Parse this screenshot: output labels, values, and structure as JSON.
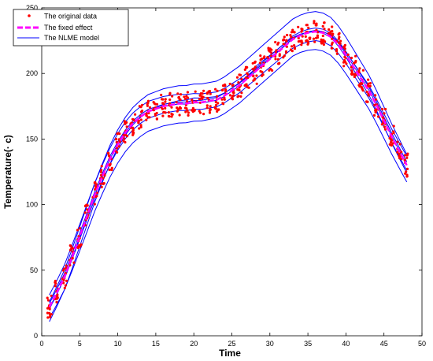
{
  "chart_data": {
    "type": "line",
    "xlabel": "Time",
    "ylabel": "Temperature(· c)",
    "xlim": [
      0,
      50
    ],
    "ylim": [
      0,
      250
    ],
    "xticks": [
      0,
      5,
      10,
      15,
      20,
      25,
      30,
      35,
      40,
      45,
      50
    ],
    "yticks": [
      0,
      50,
      100,
      150,
      200,
      250
    ],
    "grid": false,
    "legend_position": "top-left",
    "colors": {
      "original": "#ff0000",
      "fixed": "#ff00ff",
      "nlme": "#0000ff",
      "axis": "#000000"
    },
    "fixed_effect": {
      "name": "The fixed effect",
      "x": [
        1,
        2,
        3,
        4,
        5,
        6,
        7,
        8,
        9,
        10,
        11,
        12,
        13,
        14,
        15,
        16,
        17,
        18,
        19,
        20,
        21,
        22,
        23,
        24,
        25,
        26,
        27,
        28,
        29,
        30,
        31,
        32,
        33,
        34,
        35,
        36,
        37,
        38,
        39,
        40,
        41,
        42,
        43,
        44,
        45,
        46,
        47,
        48
      ],
      "y": [
        22,
        33,
        45,
        60,
        76,
        92,
        108,
        122,
        135,
        146,
        155,
        162,
        167,
        171,
        173,
        175,
        176,
        177,
        177,
        178,
        178,
        179,
        180,
        183,
        187,
        191,
        196,
        201,
        206,
        211,
        216,
        221,
        226,
        229,
        231,
        232,
        231,
        228,
        222,
        214,
        205,
        196,
        187,
        176,
        164,
        152,
        141,
        130
      ]
    },
    "nlme_curves": [
      {
        "offset": 5,
        "slope_adj": 1.04
      },
      {
        "offset": -6,
        "slope_adj": 0.96
      },
      {
        "offset": 2,
        "slope_adj": 1.0
      },
      {
        "offset": -3,
        "slope_adj": 1.02
      },
      {
        "offset": 8,
        "slope_adj": 0.98
      },
      {
        "offset": -9,
        "slope_adj": 1.05
      },
      {
        "offset": 0,
        "slope_adj": 0.97
      }
    ],
    "nlme_name": "The NLME model",
    "original_name": "The original data",
    "original_spread": 9
  },
  "legend": {
    "original": "The original data",
    "fixed": "The fixed effect",
    "nlme": "The NLME model"
  }
}
